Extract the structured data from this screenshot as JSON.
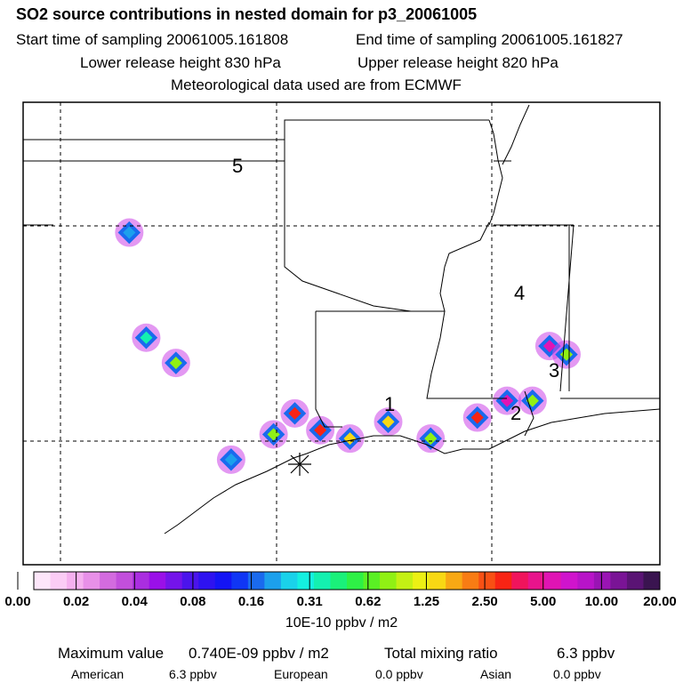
{
  "header": {
    "title": "SO2 source contributions in nested domain for p3_20061005",
    "start_label": "Start time of sampling 20061005.161808",
    "end_label": "End time of sampling 20061005.161827",
    "lower_label": "Lower release height  830 hPa",
    "upper_label": "Upper release height  820 hPa",
    "met_label": "Meteorological data used are from ECMWF"
  },
  "chart_data": {
    "type": "heatmap",
    "title": "SO2 source contributions in nested domain for p3_20061005",
    "colorbar": {
      "ticks": [
        "0.00",
        "0.02",
        "0.04",
        "0.08",
        "0.16",
        "0.31",
        "0.62",
        "1.25",
        "2.50",
        "5.00",
        "10.00",
        "20.00"
      ],
      "unit_label": "10E-10 ppbv / m2",
      "colors": [
        "#fde6fa",
        "#fbccf5",
        "#f5b0ef",
        "#e890e8",
        "#d36bdf",
        "#c24fdc",
        "#aa2ee0",
        "#9a10e8",
        "#7414ea",
        "#4b14ec",
        "#2e12f0",
        "#1414f5",
        "#1036f5",
        "#1a6aee",
        "#1ca0ec",
        "#1ad2ea",
        "#14f0e0",
        "#14f0b0",
        "#1af07a",
        "#2ef046",
        "#5af024",
        "#90f014",
        "#c4f014",
        "#ecf014",
        "#f8d814",
        "#f8a814",
        "#f87c14",
        "#f85014",
        "#f82414",
        "#f0145c",
        "#e8148c",
        "#e014b4",
        "#d014cc",
        "#b814c8",
        "#9a14b4",
        "#7a1496",
        "#5a1474",
        "#3a1450"
      ]
    },
    "source_labels": [
      "1",
      "2",
      "3",
      "4",
      "5"
    ],
    "hotspots": [
      {
        "lon": -95.1,
        "lat": 29.5,
        "level": 0.16
      },
      {
        "lon": -94.1,
        "lat": 30.1,
        "level": 0.62
      },
      {
        "lon": -93.6,
        "lat": 30.6,
        "level": 2.5
      },
      {
        "lon": -93.0,
        "lat": 30.2,
        "level": 2.5
      },
      {
        "lon": -92.3,
        "lat": 30.0,
        "level": 1.25
      },
      {
        "lon": -91.4,
        "lat": 30.4,
        "level": 1.25
      },
      {
        "lon": -90.4,
        "lat": 30.0,
        "level": 0.62
      },
      {
        "lon": -89.3,
        "lat": 30.5,
        "level": 2.5
      },
      {
        "lon": -88.6,
        "lat": 30.9,
        "level": 5.0
      },
      {
        "lon": -88.0,
        "lat": 30.9,
        "level": 0.62
      },
      {
        "lon": -87.6,
        "lat": 32.2,
        "level": 5.0
      },
      {
        "lon": -87.2,
        "lat": 32.0,
        "level": 0.62
      },
      {
        "lon": -97.5,
        "lat": 34.9,
        "level": 0.16
      },
      {
        "lon": -97.1,
        "lat": 32.4,
        "level": 0.31
      },
      {
        "lon": -96.4,
        "lat": 31.8,
        "level": 0.62
      }
    ]
  },
  "footer": {
    "max_label": "Maximum value",
    "max_value": "0.740E-09 ppbv / m2",
    "total_label": "Total mixing ratio",
    "total_value": "6.3 ppbv",
    "american_label": "American",
    "american_value": "6.3 ppbv",
    "european_label": "European",
    "european_value": "0.0 ppbv",
    "asian_label": "Asian",
    "asian_value": "0.0 ppbv"
  }
}
